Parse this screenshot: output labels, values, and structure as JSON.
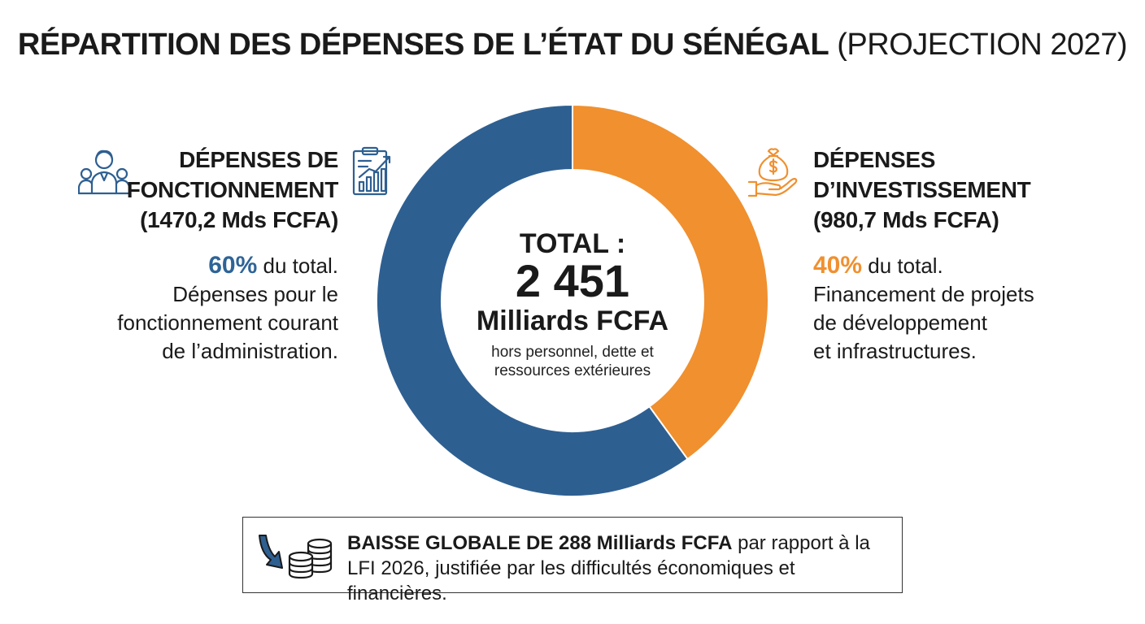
{
  "title": {
    "bold": "RÉPARTITION DES DÉPENSES DE L’ÉTAT DU SÉNÉGAL",
    "light": "(PROJECTION 2027)"
  },
  "left": {
    "heading_lines": [
      "DÉPENSES DE",
      "FONCTIONNEMENT",
      "(1470,2 Mds FCFA)"
    ],
    "pct": "60%",
    "pct_suffix": " du total.",
    "desc_lines": [
      "Dépenses pour le",
      "fonctionnement courant",
      "de l’administration."
    ],
    "icons": [
      "team-icon",
      "report-chart-icon"
    ]
  },
  "right": {
    "heading_lines": [
      "DÉPENSES",
      "D’INVESTISSEMENT",
      "(980,7 Mds FCFA)"
    ],
    "pct": "40%",
    "pct_suffix": " du total.",
    "desc_lines": [
      "Financement de projets",
      "de développement",
      "et infrastructures."
    ],
    "icons": [
      "money-bag-hand-icon"
    ]
  },
  "center": {
    "label": "TOTAL :",
    "value": "2 451",
    "unit": "Milliards FCFA",
    "note_lines": [
      "hors personnel, dette et",
      "ressources extérieures"
    ]
  },
  "footer": {
    "strong": "BAISSE GLOBALE DE 288 Milliards FCFA",
    "rest": " par rapport à la LFI 2026, justifiée par les difficultés économiques et financières.",
    "icons": [
      "down-arrow-icon",
      "coins-stack-icon"
    ]
  },
  "colors": {
    "fonctionnement": "#2e5f91",
    "investissement": "#f0902f"
  },
  "chart_data": {
    "type": "pie",
    "title": "RÉPARTITION DES DÉPENSES DE L’ÉTAT DU SÉNÉGAL (PROJECTION 2027)",
    "categories": [
      "DÉPENSES DE FONCTIONNEMENT",
      "DÉPENSES D’INVESTISSEMENT"
    ],
    "values": [
      1470.2,
      980.7
    ],
    "percentages": [
      60,
      40
    ],
    "unit": "Mds FCFA",
    "total": 2451,
    "donut": true,
    "legend": "none"
  }
}
